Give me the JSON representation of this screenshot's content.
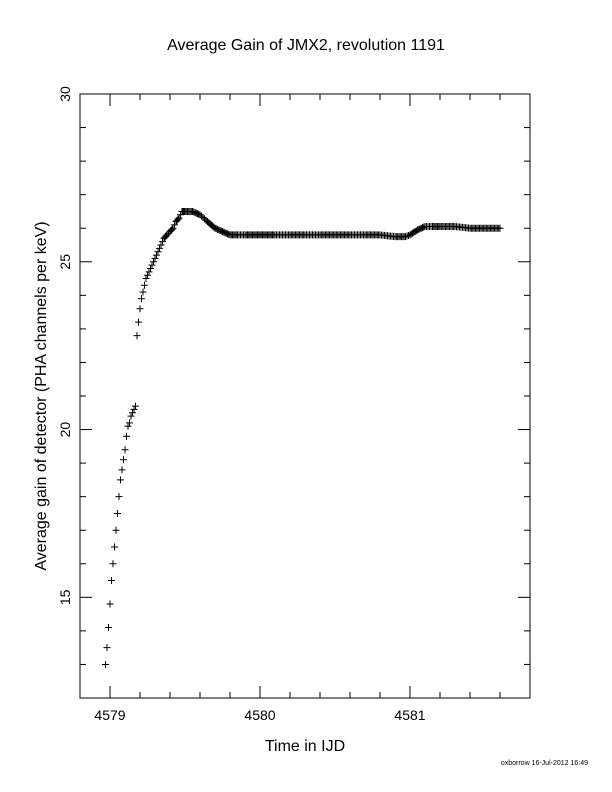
{
  "chart_data": {
    "type": "scatter",
    "title": "Average Gain of JMX2, revolution 1191",
    "xlabel": "Time in IJD",
    "ylabel": "Average gain of detector (PHA channels per keV)",
    "xlim": [
      4578.8,
      4581.8
    ],
    "ylim": [
      12,
      30
    ],
    "xticks": [
      4579,
      4580,
      4581
    ],
    "yticks": [
      15,
      20,
      25,
      30
    ],
    "marker": "plus",
    "series": [
      {
        "values_x": [
          4578.97,
          4578.98,
          4578.99,
          4579.0,
          4579.01,
          4579.02,
          4579.03,
          4579.04,
          4579.05,
          4579.06,
          4579.07,
          4579.08,
          4579.09,
          4579.1,
          4579.11,
          4579.12,
          4579.13,
          4579.14,
          4579.15,
          4579.16,
          4579.17,
          4579.18,
          4579.19,
          4579.2,
          4579.21,
          4579.22,
          4579.23,
          4579.24,
          4579.25,
          4579.26,
          4579.27,
          4579.28,
          4579.29,
          4579.3,
          4579.31,
          4579.32,
          4579.33,
          4579.34,
          4579.35,
          4579.36,
          4579.38,
          4579.4,
          4579.42,
          4579.44,
          4579.46,
          4579.48,
          4579.5,
          4579.55,
          4579.6,
          4579.65,
          4579.7,
          4579.75,
          4579.8,
          4579.85,
          4579.9,
          4579.95,
          4580.0,
          4580.05,
          4580.1,
          4580.2,
          4580.3,
          4580.4,
          4580.5,
          4580.6,
          4580.7,
          4580.8,
          4580.9,
          4580.97,
          4581.0,
          4581.05,
          4581.1,
          4581.15,
          4581.2,
          4581.3,
          4581.4,
          4581.5,
          4581.6
        ],
        "values_y": [
          13.0,
          13.5,
          14.1,
          14.8,
          15.5,
          16.0,
          16.5,
          17.0,
          17.5,
          18.0,
          18.5,
          18.8,
          19.1,
          19.4,
          19.8,
          20.1,
          20.2,
          20.4,
          20.5,
          20.6,
          20.7,
          22.8,
          23.2,
          23.6,
          23.9,
          24.1,
          24.3,
          24.5,
          24.6,
          24.7,
          24.8,
          24.9,
          25.0,
          25.1,
          25.2,
          25.3,
          25.4,
          25.5,
          25.6,
          25.7,
          25.8,
          25.9,
          26.0,
          26.2,
          26.3,
          26.5,
          26.5,
          26.5,
          26.4,
          26.2,
          26.0,
          25.9,
          25.8,
          25.8,
          25.8,
          25.8,
          25.8,
          25.8,
          25.8,
          25.8,
          25.8,
          25.8,
          25.8,
          25.8,
          25.8,
          25.8,
          25.75,
          25.75,
          25.8,
          25.95,
          26.05,
          26.05,
          26.05,
          26.05,
          26.0,
          26.0,
          26.0
        ]
      }
    ]
  },
  "footer": "oxborrow 16-Jul-2012 16:49"
}
